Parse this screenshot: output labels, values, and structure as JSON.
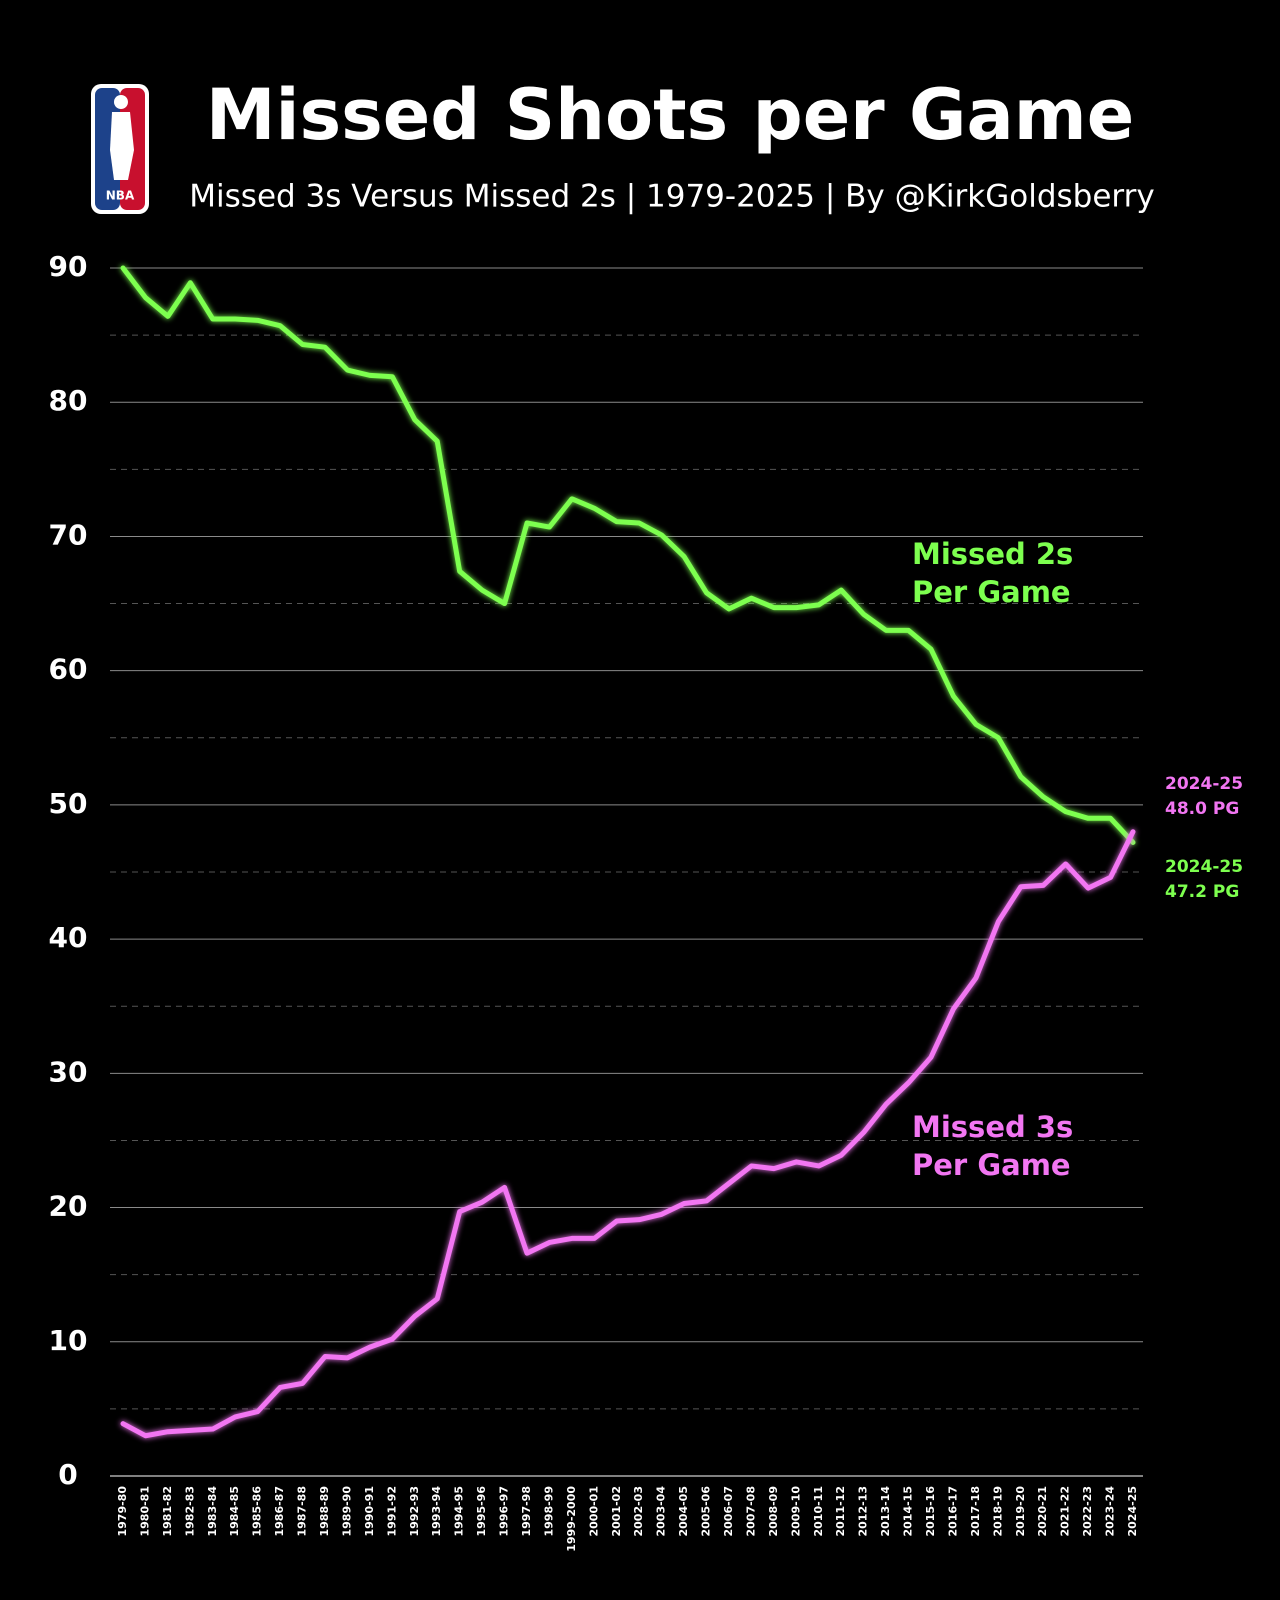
{
  "chart_data": {
    "type": "line",
    "title": "Missed Shots per Game",
    "subtitle": "Missed 3s Versus Missed 2s | 1979-2025 | By @KirkGoldsberry",
    "logo_text": "NBA",
    "categories": [
      "1979-80",
      "1980-81",
      "1981-82",
      "1982-83",
      "1983-84",
      "1984-85",
      "1985-86",
      "1986-87",
      "1987-88",
      "1988-89",
      "1989-90",
      "1990-91",
      "1991-92",
      "1992-93",
      "1993-94",
      "1994-95",
      "1995-96",
      "1996-97",
      "1997-98",
      "1998-99",
      "1999-2000",
      "2000-01",
      "2001-02",
      "2002-03",
      "2003-04",
      "2004-05",
      "2005-06",
      "2006-07",
      "2007-08",
      "2008-09",
      "2009-10",
      "2010-11",
      "2011-12",
      "2012-13",
      "2013-14",
      "2014-15",
      "2015-16",
      "2016-17",
      "2017-18",
      "2018-19",
      "2019-20",
      "2020-21",
      "2021-22",
      "2022-23",
      "2023-24",
      "2024-25"
    ],
    "series": [
      {
        "name": "Missed 2s\nPer Game",
        "color": "#7dff4f",
        "end_label": "47.2 PG",
        "values": [
          90.0,
          87.8,
          86.4,
          88.9,
          86.2,
          86.2,
          86.1,
          85.7,
          84.3,
          84.1,
          82.4,
          82.0,
          81.9,
          78.7,
          77.1,
          67.4,
          66.0,
          65.0,
          71.0,
          70.7,
          72.8,
          72.1,
          71.1,
          71.0,
          70.1,
          68.5,
          65.8,
          64.6,
          65.4,
          64.7,
          64.7,
          64.9,
          66.0,
          64.2,
          63.0,
          63.0,
          61.6,
          58.1,
          56.0,
          55.0,
          52.1,
          50.6,
          49.5,
          49.0,
          49.0,
          47.2
        ]
      },
      {
        "name": "Missed 3s\nPer Game",
        "color": "#f276f2",
        "end_label": "48.0 PG",
        "values": [
          3.9,
          3.0,
          3.3,
          3.4,
          3.5,
          4.4,
          4.8,
          6.6,
          6.9,
          8.9,
          8.8,
          9.6,
          10.2,
          11.9,
          13.2,
          19.7,
          20.4,
          21.5,
          16.6,
          17.4,
          17.7,
          17.7,
          19.0,
          19.1,
          19.5,
          20.3,
          20.5,
          21.8,
          23.1,
          22.9,
          23.4,
          23.1,
          23.9,
          25.6,
          27.7,
          29.3,
          31.2,
          34.8,
          37.1,
          41.3,
          43.9,
          44.0,
          45.6,
          43.8,
          44.6,
          48.0
        ]
      }
    ],
    "ylim": [
      0,
      90
    ],
    "yticks": [
      0,
      10,
      20,
      30,
      40,
      50,
      60,
      70,
      80,
      90
    ],
    "grid": true,
    "minor_grid": true
  }
}
